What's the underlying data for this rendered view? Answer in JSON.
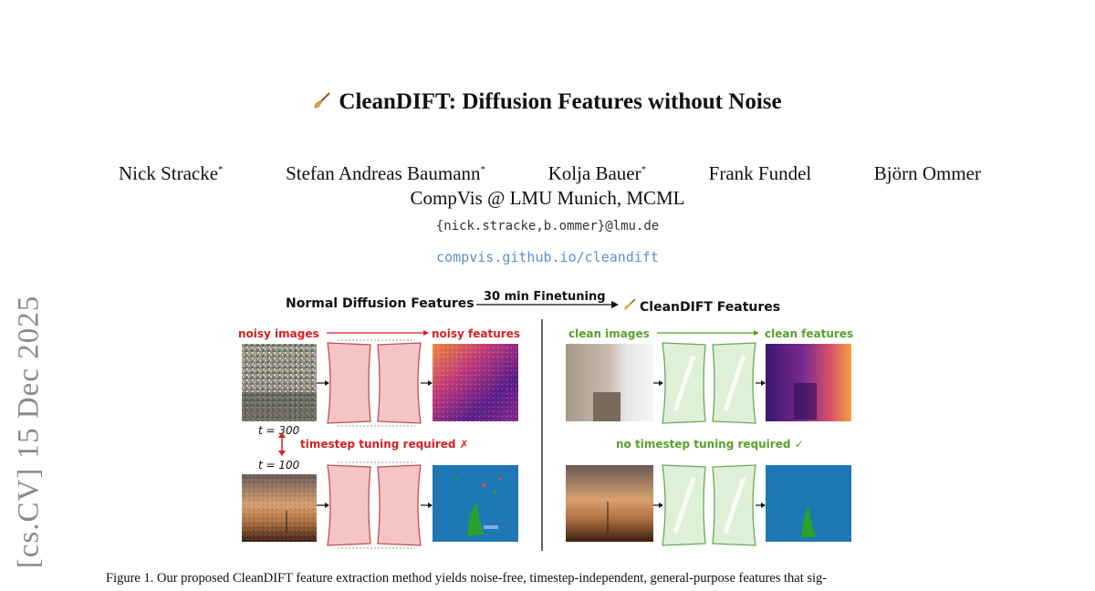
{
  "paper": {
    "title": "CleanDIFT: Diffusion Features without Noise",
    "authors": [
      {
        "name": "Nick Stracke",
        "mark": "*"
      },
      {
        "name": "Stefan Andreas Baumann",
        "mark": "*"
      },
      {
        "name": "Kolja Bauer",
        "mark": "*"
      },
      {
        "name": "Frank Fundel",
        "mark": ""
      },
      {
        "name": "Björn Ommer",
        "mark": ""
      }
    ],
    "affiliation": "CompVis @ LMU Munich, MCML",
    "email": "{nick.stracke,b.ommer}@lmu.de",
    "url": "compvis.github.io/cleandift",
    "arxiv_stamp": "[cs.CV]  15 Dec 2025"
  },
  "figure": {
    "header_left": "Normal Diffusion Features",
    "header_arrow": "30 min Finetuning",
    "header_right": "CleanDIFT Features",
    "left": {
      "label_input": "noisy images",
      "label_output": "noisy features",
      "t_top": "t = 300",
      "t_bottom": "t = 100",
      "note": "timestep tuning required ✗"
    },
    "right": {
      "label_input": "clean images",
      "label_output": "clean features",
      "note": "no timestep tuning required ✓"
    },
    "colors": {
      "red": "#d92020",
      "green": "#5aa02c",
      "pink_block": "#f5c4c4",
      "green_block": "#dff0d8",
      "seg_blue": "#1f77b4",
      "seg_green": "#2ca02c"
    }
  },
  "caption": "Figure 1. Our proposed CleanDIFT feature extraction method yields noise-free, timestep-independent, general-purpose features that sig-"
}
